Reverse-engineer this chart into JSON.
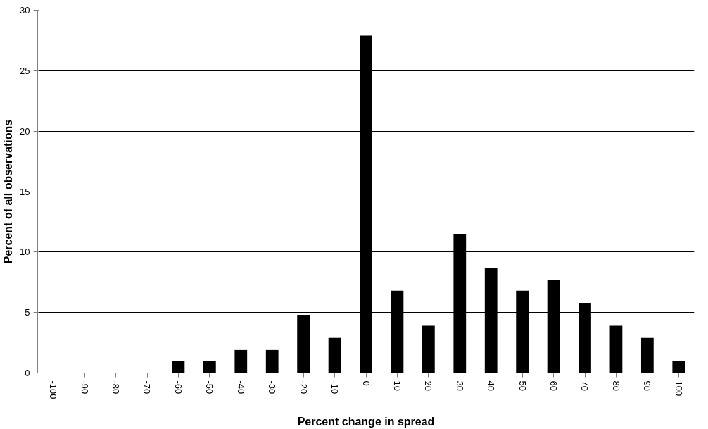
{
  "chart_data": {
    "type": "bar",
    "xlabel": "Percent change in spread",
    "ylabel": "Percent of all observations",
    "categories": [
      "-100",
      "-90",
      "-80",
      "-70",
      "-60",
      "-50",
      "-40",
      "-30",
      "-20",
      "-10",
      "0",
      "10",
      "20",
      "30",
      "40",
      "50",
      "60",
      "70",
      "80",
      "90",
      "100"
    ],
    "values": [
      0,
      0,
      0,
      0,
      1.0,
      1.0,
      1.9,
      1.9,
      4.8,
      2.9,
      27.9,
      6.8,
      3.9,
      11.5,
      8.7,
      6.8,
      7.7,
      5.8,
      3.9,
      2.9,
      1.0
    ],
    "color": "#000000",
    "ylim": [
      0,
      30
    ],
    "yticks": [
      0,
      5,
      10,
      15,
      20,
      25,
      30
    ],
    "grid": "y"
  }
}
